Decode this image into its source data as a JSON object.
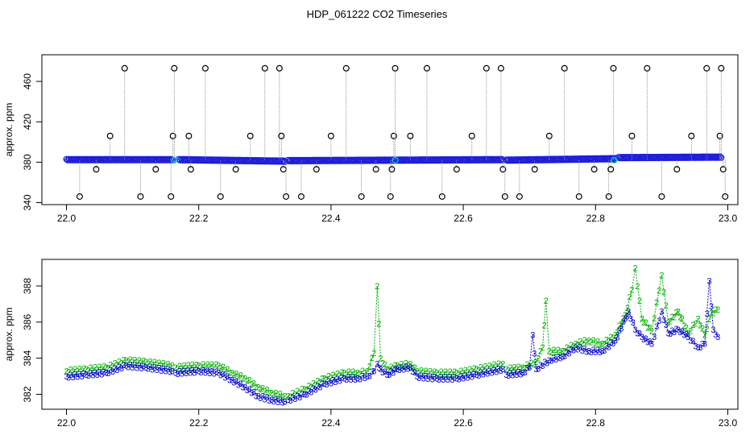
{
  "title": "HDP_061222  CO2 Timeseries",
  "chart_data": [
    {
      "type": "scatter",
      "ylabel": "approx. ppm",
      "xlim": [
        22.0,
        23.0
      ],
      "ylim": [
        340,
        480
      ],
      "xticks": [
        "22.0",
        "22.2",
        "22.4",
        "22.6",
        "22.8",
        "23.0"
      ],
      "yticks": [
        "340",
        "380",
        "420",
        "460"
      ],
      "grid": false,
      "baseline_segments": [
        {
          "x": [
            22.0,
            22.16
          ],
          "y": [
            382.5,
            382.5
          ]
        },
        {
          "x": [
            22.17,
            22.33
          ],
          "y": [
            382.5,
            381.0
          ]
        },
        {
          "x": [
            22.335,
            22.66
          ],
          "y": [
            381.5,
            382.5
          ]
        },
        {
          "x": [
            22.665,
            22.83
          ],
          "y": [
            382.0,
            383.5
          ]
        },
        {
          "x": [
            22.835,
            22.99
          ],
          "y": [
            384.5,
            385.0
          ]
        }
      ],
      "spikes": [
        {
          "x": 22.02,
          "y": 346
        },
        {
          "x": 22.045,
          "y": 373
        },
        {
          "x": 22.066,
          "y": 406
        },
        {
          "x": 22.088,
          "y": 473
        },
        {
          "x": 22.112,
          "y": 346
        },
        {
          "x": 22.135,
          "y": 373
        },
        {
          "x": 22.158,
          "y": 346
        },
        {
          "x": 22.161,
          "y": 406
        },
        {
          "x": 22.163,
          "y": 473
        },
        {
          "x": 22.185,
          "y": 406
        },
        {
          "x": 22.188,
          "y": 373
        },
        {
          "x": 22.21,
          "y": 473
        },
        {
          "x": 22.233,
          "y": 346
        },
        {
          "x": 22.256,
          "y": 373
        },
        {
          "x": 22.278,
          "y": 406
        },
        {
          "x": 22.3,
          "y": 473
        },
        {
          "x": 22.322,
          "y": 473
        },
        {
          "x": 22.325,
          "y": 406
        },
        {
          "x": 22.328,
          "y": 373
        },
        {
          "x": 22.332,
          "y": 346
        },
        {
          "x": 22.355,
          "y": 346
        },
        {
          "x": 22.378,
          "y": 373
        },
        {
          "x": 22.4,
          "y": 406
        },
        {
          "x": 22.423,
          "y": 473
        },
        {
          "x": 22.446,
          "y": 346
        },
        {
          "x": 22.468,
          "y": 373
        },
        {
          "x": 22.49,
          "y": 346
        },
        {
          "x": 22.492,
          "y": 373
        },
        {
          "x": 22.495,
          "y": 406
        },
        {
          "x": 22.497,
          "y": 473
        },
        {
          "x": 22.52,
          "y": 406
        },
        {
          "x": 22.545,
          "y": 473
        },
        {
          "x": 22.568,
          "y": 346
        },
        {
          "x": 22.59,
          "y": 373
        },
        {
          "x": 22.613,
          "y": 406
        },
        {
          "x": 22.635,
          "y": 473
        },
        {
          "x": 22.657,
          "y": 473
        },
        {
          "x": 22.66,
          "y": 373
        },
        {
          "x": 22.663,
          "y": 346
        },
        {
          "x": 22.685,
          "y": 346
        },
        {
          "x": 22.708,
          "y": 373
        },
        {
          "x": 22.73,
          "y": 406
        },
        {
          "x": 22.753,
          "y": 473
        },
        {
          "x": 22.775,
          "y": 346
        },
        {
          "x": 22.798,
          "y": 373
        },
        {
          "x": 22.82,
          "y": 346
        },
        {
          "x": 22.823,
          "y": 373
        },
        {
          "x": 22.827,
          "y": 473
        },
        {
          "x": 22.855,
          "y": 406
        },
        {
          "x": 22.878,
          "y": 473
        },
        {
          "x": 22.9,
          "y": 346
        },
        {
          "x": 22.923,
          "y": 373
        },
        {
          "x": 22.945,
          "y": 406
        },
        {
          "x": 22.968,
          "y": 473
        },
        {
          "x": 22.988,
          "y": 406
        },
        {
          "x": 22.99,
          "y": 473
        },
        {
          "x": 22.993,
          "y": 373
        },
        {
          "x": 22.996,
          "y": 346
        }
      ]
    },
    {
      "type": "line",
      "ylabel": "approx. ppm",
      "xlim": [
        22.0,
        23.0
      ],
      "ylim": [
        381.6,
        389.4
      ],
      "xticks": [
        "22.0",
        "22.2",
        "22.4",
        "22.6",
        "22.8",
        "23.0"
      ],
      "yticks": [
        "382",
        "384",
        "386",
        "388"
      ],
      "grid": false,
      "gaps_after_x": [
        22.16,
        22.33,
        22.66
      ],
      "series": [
        {
          "marker": "2",
          "color": "#00b000",
          "points": [
            [
              22.0,
              383.3
            ],
            [
              22.03,
              383.4
            ],
            [
              22.06,
              383.5
            ],
            [
              22.09,
              383.9
            ],
            [
              22.12,
              383.8
            ],
            [
              22.16,
              383.6
            ],
            [
              22.165,
              383.5
            ],
            [
              22.2,
              383.6
            ],
            [
              22.23,
              383.6
            ],
            [
              22.25,
              383.2
            ],
            [
              22.27,
              382.9
            ],
            [
              22.29,
              382.4
            ],
            [
              22.31,
              382.1
            ],
            [
              22.33,
              381.9
            ],
            [
              22.335,
              381.9
            ],
            [
              22.36,
              382.3
            ],
            [
              22.39,
              382.9
            ],
            [
              22.42,
              383.2
            ],
            [
              22.44,
              383.2
            ],
            [
              22.455,
              383.3
            ],
            [
              22.465,
              384.3
            ],
            [
              22.47,
              388.0
            ],
            [
              22.475,
              384.0
            ],
            [
              22.485,
              383.4
            ],
            [
              22.5,
              383.6
            ],
            [
              22.52,
              383.7
            ],
            [
              22.53,
              383.3
            ],
            [
              22.56,
              383.2
            ],
            [
              22.59,
              383.2
            ],
            [
              22.62,
              383.4
            ],
            [
              22.66,
              383.7
            ],
            [
              22.665,
              383.4
            ],
            [
              22.69,
              383.5
            ],
            [
              22.71,
              383.8
            ],
            [
              22.72,
              384.6
            ],
            [
              22.725,
              387.2
            ],
            [
              22.73,
              384.4
            ],
            [
              22.75,
              384.4
            ],
            [
              22.77,
              384.8
            ],
            [
              22.79,
              385.0
            ],
            [
              22.81,
              384.8
            ],
            [
              22.83,
              385.3
            ],
            [
              22.845,
              386.4
            ],
            [
              22.855,
              387.8
            ],
            [
              22.86,
              389.0
            ],
            [
              22.87,
              386.2
            ],
            [
              22.885,
              385.5
            ],
            [
              22.9,
              388.6
            ],
            [
              22.91,
              386.0
            ],
            [
              22.925,
              386.6
            ],
            [
              22.94,
              385.4
            ],
            [
              22.955,
              386.2
            ],
            [
              22.965,
              385.3
            ],
            [
              22.975,
              386.5
            ],
            [
              22.985,
              386.7
            ]
          ]
        },
        {
          "marker": "3",
          "color": "#0000cc",
          "points": [
            [
              22.0,
              383.0
            ],
            [
              22.03,
              383.1
            ],
            [
              22.06,
              383.2
            ],
            [
              22.09,
              383.6
            ],
            [
              22.12,
              383.5
            ],
            [
              22.16,
              383.3
            ],
            [
              22.165,
              383.2
            ],
            [
              22.2,
              383.3
            ],
            [
              22.23,
              383.2
            ],
            [
              22.25,
              382.8
            ],
            [
              22.27,
              382.4
            ],
            [
              22.29,
              381.9
            ],
            [
              22.31,
              381.7
            ],
            [
              22.33,
              381.6
            ],
            [
              22.335,
              381.7
            ],
            [
              22.36,
              382.0
            ],
            [
              22.39,
              382.6
            ],
            [
              22.42,
              382.9
            ],
            [
              22.44,
              382.9
            ],
            [
              22.455,
              383.0
            ],
            [
              22.465,
              383.3
            ],
            [
              22.47,
              383.7
            ],
            [
              22.475,
              383.4
            ],
            [
              22.485,
              383.1
            ],
            [
              22.5,
              383.4
            ],
            [
              22.52,
              383.5
            ],
            [
              22.53,
              383.0
            ],
            [
              22.56,
              382.9
            ],
            [
              22.59,
              382.9
            ],
            [
              22.62,
              383.1
            ],
            [
              22.66,
              383.4
            ],
            [
              22.665,
              383.1
            ],
            [
              22.69,
              383.2
            ],
            [
              22.7,
              383.5
            ],
            [
              22.705,
              385.3
            ],
            [
              22.71,
              383.4
            ],
            [
              22.73,
              383.9
            ],
            [
              22.75,
              384.1
            ],
            [
              22.77,
              384.6
            ],
            [
              22.79,
              384.4
            ],
            [
              22.81,
              384.4
            ],
            [
              22.83,
              385.0
            ],
            [
              22.845,
              386.2
            ],
            [
              22.85,
              386.6
            ],
            [
              22.86,
              385.6
            ],
            [
              22.87,
              385.2
            ],
            [
              22.885,
              384.8
            ],
            [
              22.9,
              386.6
            ],
            [
              22.91,
              385.4
            ],
            [
              22.925,
              385.6
            ],
            [
              22.94,
              385.2
            ],
            [
              22.955,
              384.6
            ],
            [
              22.965,
              384.8
            ],
            [
              22.972,
              388.3
            ],
            [
              22.978,
              385.6
            ],
            [
              22.985,
              385.2
            ]
          ]
        }
      ]
    }
  ]
}
